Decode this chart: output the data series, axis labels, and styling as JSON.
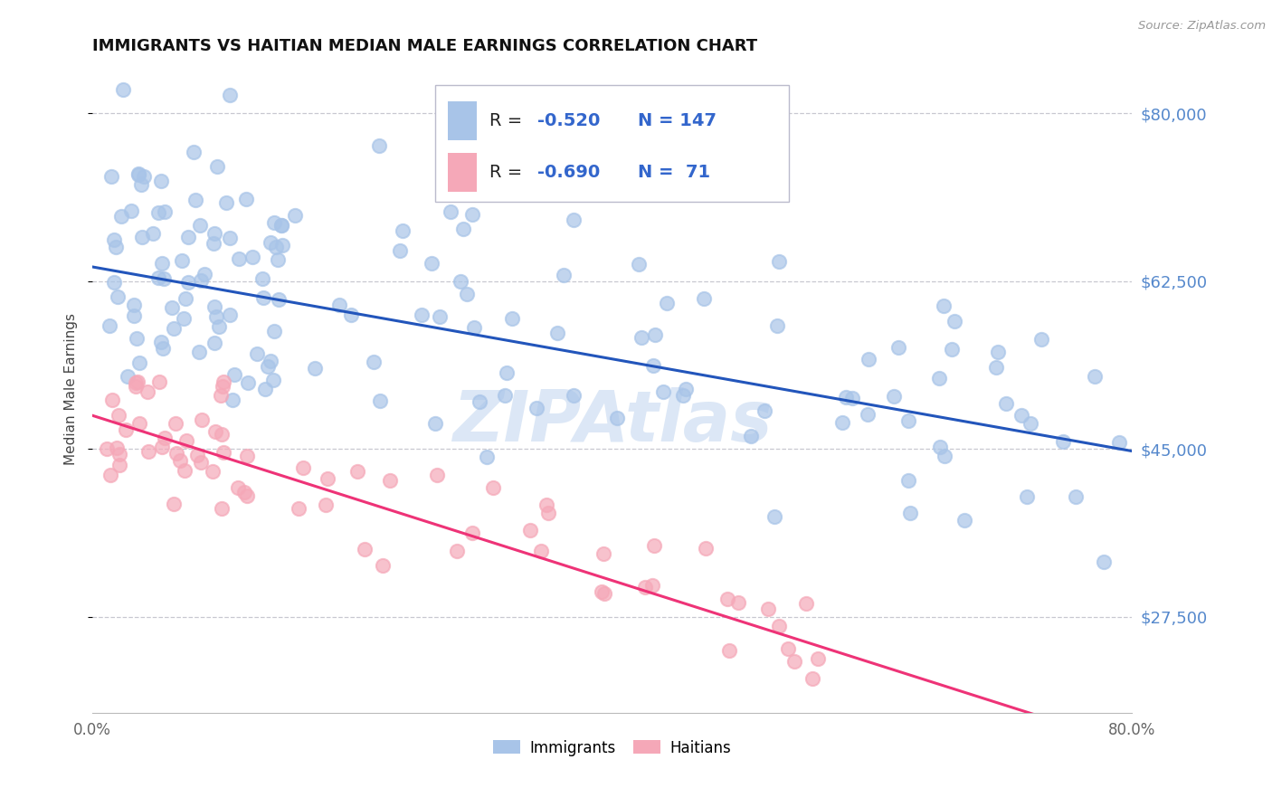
{
  "title": "IMMIGRANTS VS HAITIAN MEDIAN MALE EARNINGS CORRELATION CHART",
  "source": "Source: ZipAtlas.com",
  "ylabel": "Median Male Earnings",
  "xlim": [
    0.0,
    0.8
  ],
  "ylim": [
    17500,
    85000
  ],
  "yticks": [
    27500,
    45000,
    62500,
    80000
  ],
  "ytick_labels": [
    "$27,500",
    "$45,000",
    "$62,500",
    "$80,000"
  ],
  "xtick_labels": [
    "0.0%",
    "80.0%"
  ],
  "background_color": "#ffffff",
  "grid_color": "#c8c8d0",
  "imm_color": "#a8c4e8",
  "hai_color": "#f5a8b8",
  "imm_line_color": "#2255bb",
  "hai_line_color": "#ee3377",
  "watermark": "ZIPAtlas",
  "imm_seed": 42,
  "hai_seed": 99,
  "imm_n": 147,
  "hai_n": 71,
  "imm_intercept": 64000,
  "imm_slope": -24000,
  "imm_noise": 7500,
  "hai_intercept": 48500,
  "hai_slope": -43000,
  "hai_noise": 3500,
  "ytick_color": "#5588cc",
  "title_color": "#111111",
  "ylabel_color": "#444444",
  "xtick_color": "#666666"
}
